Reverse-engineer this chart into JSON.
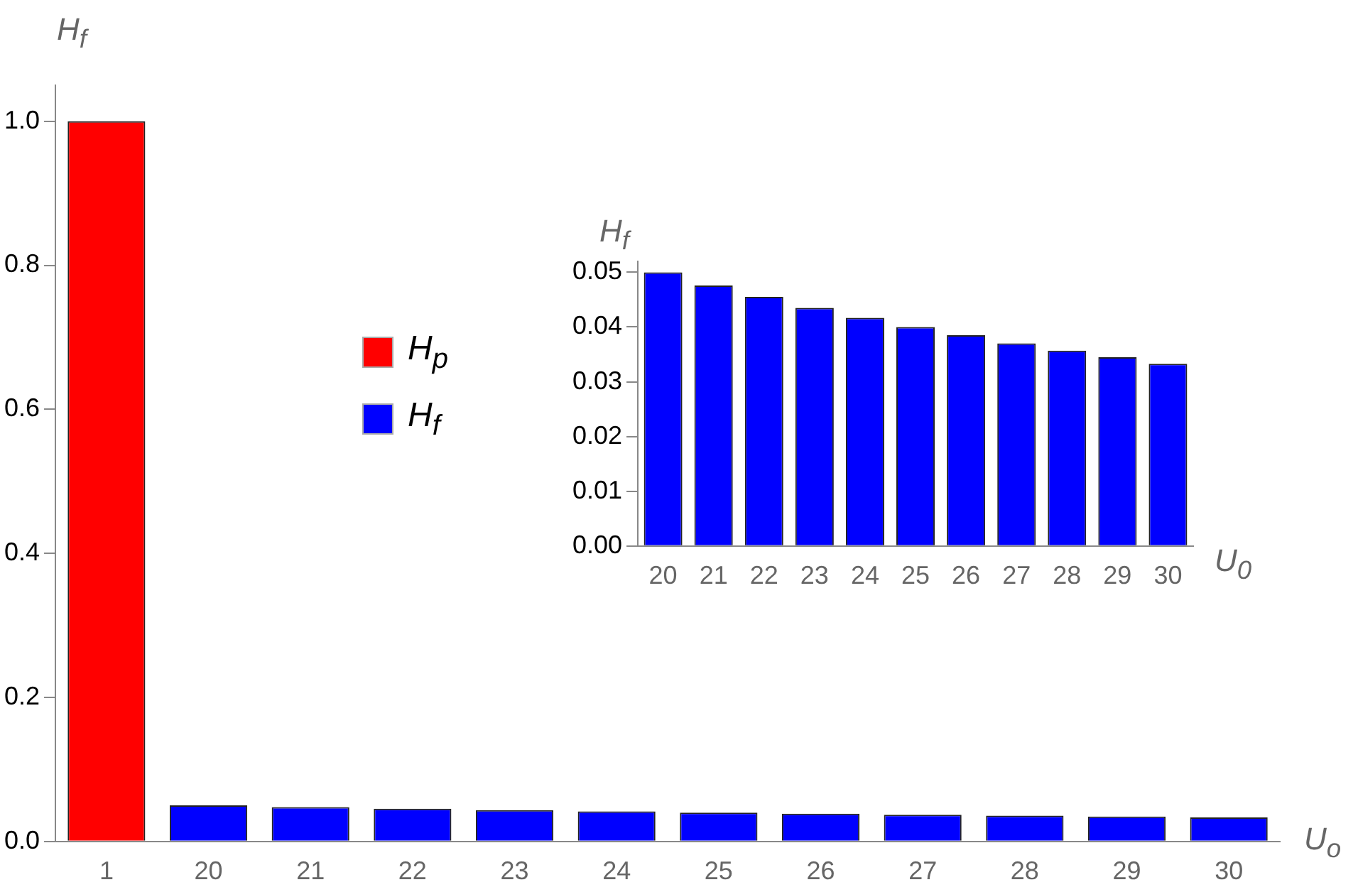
{
  "chart_data": [
    {
      "type": "bar",
      "ylabel": "H$_{f}$",
      "xlabel": "U$_{o}$",
      "categories": [
        "1",
        "20",
        "21",
        "22",
        "23",
        "24",
        "25",
        "26",
        "27",
        "28",
        "29",
        "30"
      ],
      "series": [
        {
          "name": "H$_{p}$",
          "color": "#ff0000",
          "values": [
            1,
            null,
            null,
            null,
            null,
            null,
            null,
            null,
            null,
            null,
            null,
            null
          ]
        },
        {
          "name": "H$_{f}$",
          "color": "#0000ff",
          "values": [
            null,
            0.05,
            0.0476,
            0.0455,
            0.0435,
            0.0417,
            0.04,
            0.0385,
            0.037,
            0.0357,
            0.0345,
            0.0333
          ]
        }
      ],
      "ylim": [
        0,
        1.05
      ],
      "yticks": [
        {
          "value": 0,
          "label": "0.0"
        },
        {
          "value": 0.2,
          "label": "0.2"
        },
        {
          "value": 0.4,
          "label": "0.4"
        },
        {
          "value": 0.6,
          "label": "0.6"
        },
        {
          "value": 0.8,
          "label": "0.8"
        },
        {
          "value": 1,
          "label": "1.0"
        }
      ],
      "grid": false,
      "legend": "left"
    },
    {
      "type": "bar",
      "ylabel": "H$_{f}$",
      "xlabel": "U$_{0}$",
      "categories": [
        "20",
        "21",
        "22",
        "23",
        "24",
        "25",
        "26",
        "27",
        "28",
        "29",
        "30"
      ],
      "series": [
        {
          "color": "#0000ff",
          "values": [
            0.05,
            0.0476,
            0.0455,
            0.0435,
            0.0417,
            0.04,
            0.0385,
            0.037,
            0.0357,
            0.0345,
            0.0333
          ]
        }
      ],
      "ylim": [
        0,
        0.052
      ],
      "yticks": [
        {
          "value": 0,
          "label": "0.00"
        },
        {
          "value": 0.01,
          "label": "0.01"
        },
        {
          "value": 0.02,
          "label": "0.02"
        },
        {
          "value": 0.03,
          "label": "0.03"
        },
        {
          "value": 0.04,
          "label": "0.04"
        },
        {
          "value": 0.05,
          "label": "0.05"
        }
      ],
      "grid": false,
      "legend": false
    }
  ]
}
